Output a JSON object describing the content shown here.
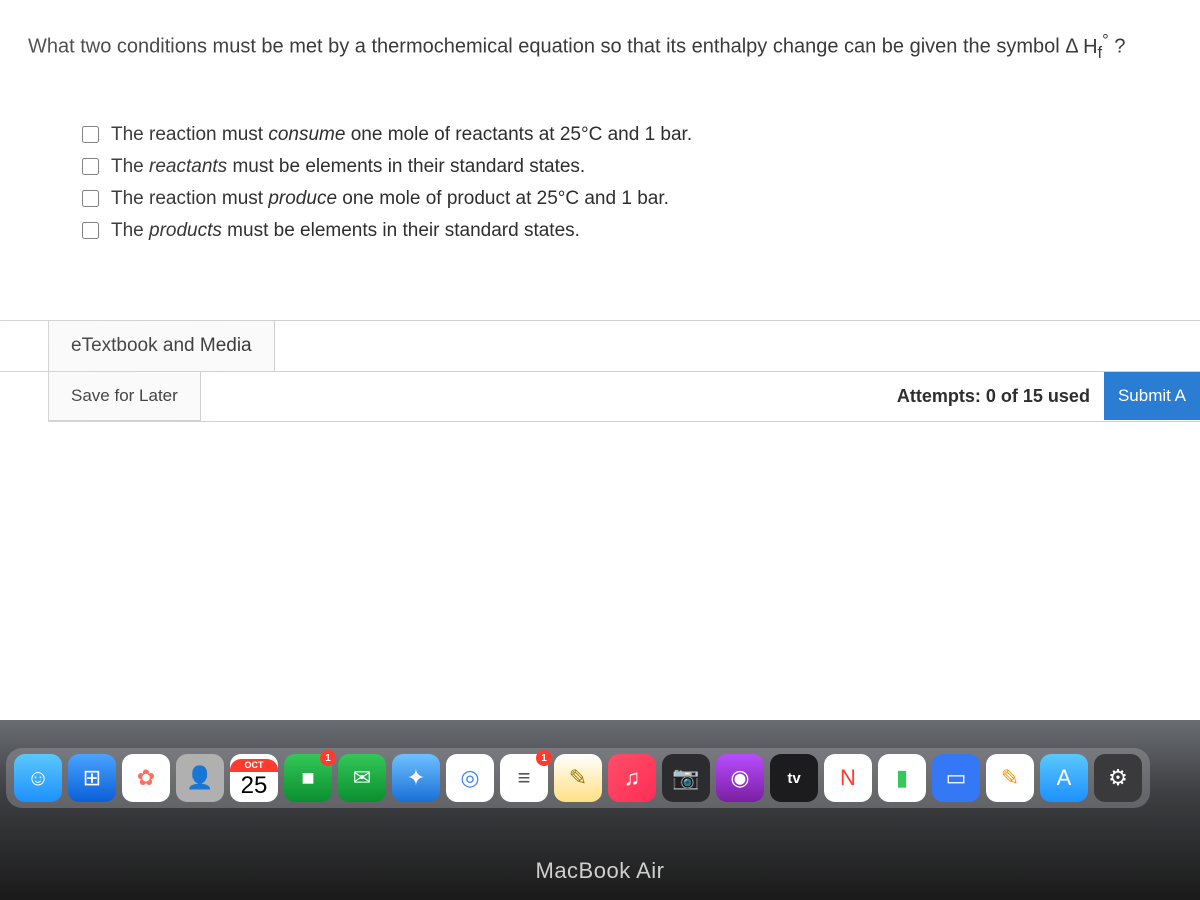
{
  "question": {
    "prefix": "What two conditions must be met by a thermochemical equation so that its enthalpy change can be given the symbol Δ ",
    "symbol_base": "H",
    "symbol_sub": "f",
    "symbol_sup": "°",
    "suffix": "?"
  },
  "options": [
    {
      "pre": "The reaction must ",
      "em": "consume",
      "post": " one mole of reactants at 25°C and 1 bar."
    },
    {
      "pre": "The ",
      "em": "reactants",
      "post": " must be elements in their standard states."
    },
    {
      "pre": "The reaction must ",
      "em": "produce",
      "post": " one mole of product at 25°C and 1 bar."
    },
    {
      "pre": "The ",
      "em": "products",
      "post": " must be elements in their standard states."
    }
  ],
  "links": {
    "etextbook": "eTextbook and Media",
    "save_later": "Save for Later"
  },
  "attempts": {
    "label": "Attempts: 0 of 15 used",
    "submit": "Submit A"
  },
  "colors": {
    "submit_bg": "#2b7cd3",
    "text": "#2e2e2e",
    "border": "#d0d0d0"
  },
  "dock": {
    "calendar": {
      "month": "OCT",
      "day": "25"
    },
    "badges": {
      "facetime": "1",
      "reminders": "1"
    },
    "tv_label": "tv",
    "icons": [
      {
        "name": "finder-icon",
        "bg": "linear-gradient(180deg,#5ac8fa,#1e90ff)",
        "glyph": "☺"
      },
      {
        "name": "app-store-alt-icon",
        "bg": "linear-gradient(180deg,#4aa3ff,#0a5fd6)",
        "glyph": "⊞"
      },
      {
        "name": "photos-icon",
        "bg": "#ffffff",
        "glyph": "✿",
        "color": "#ff6f61"
      },
      {
        "name": "contacts-icon",
        "bg": "#b0b0b0",
        "glyph": "👤"
      },
      {
        "name": "calendar-icon",
        "type": "calendar"
      },
      {
        "name": "facetime-icon",
        "bg": "linear-gradient(180deg,#34c759,#0a8f2e)",
        "glyph": "■",
        "badge": "facetime"
      },
      {
        "name": "messages-icon",
        "bg": "linear-gradient(180deg,#34c759,#0a8f2e)",
        "glyph": "✉"
      },
      {
        "name": "safari-icon",
        "bg": "linear-gradient(180deg,#6ec1ff,#1a6fd6)",
        "glyph": "✦"
      },
      {
        "name": "chrome-icon",
        "bg": "#ffffff",
        "glyph": "◎",
        "color": "#4285f4"
      },
      {
        "name": "reminders-icon",
        "bg": "#ffffff",
        "glyph": "≡",
        "color": "#555",
        "badge": "reminders"
      },
      {
        "name": "notes-icon",
        "bg": "linear-gradient(180deg,#fff,#ffe082)",
        "glyph": "✎",
        "color": "#9a7b00"
      },
      {
        "name": "music-icon",
        "bg": "linear-gradient(135deg,#ff4e6a,#ff2d55)",
        "glyph": "♫"
      },
      {
        "name": "photo-booth-icon",
        "bg": "#2c2c2e",
        "glyph": "📷"
      },
      {
        "name": "podcasts-icon",
        "bg": "linear-gradient(180deg,#b84dff,#7a1fa2)",
        "glyph": "◉"
      },
      {
        "name": "appletv-icon",
        "bg": "#1c1c1e",
        "type": "tv"
      },
      {
        "name": "news-icon",
        "bg": "#ffffff",
        "glyph": "N",
        "color": "#ff3b30"
      },
      {
        "name": "numbers-icon",
        "bg": "#ffffff",
        "glyph": "▮",
        "color": "#34c759"
      },
      {
        "name": "keynote-icon",
        "bg": "#3478f6",
        "glyph": "▭"
      },
      {
        "name": "pages-icon",
        "bg": "#ffffff",
        "glyph": "✎",
        "color": "#ff9500"
      },
      {
        "name": "app-store-icon",
        "bg": "linear-gradient(180deg,#5ac8fa,#1e90ff)",
        "glyph": "A"
      },
      {
        "name": "system-preferences-icon",
        "bg": "#3a3a3c",
        "glyph": "⚙"
      }
    ]
  },
  "device_label": "MacBook Air"
}
